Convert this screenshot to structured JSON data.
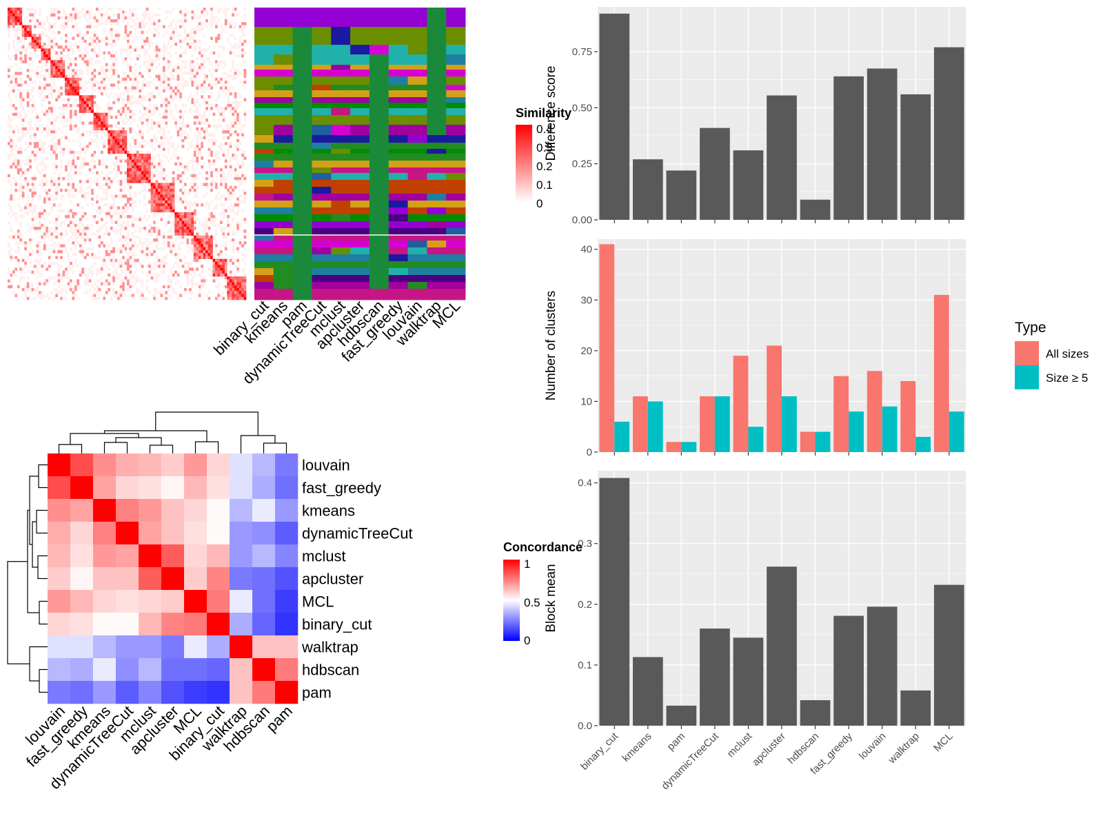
{
  "colors": {
    "panel_bg": "#ebebeb",
    "grid": "#ffffff",
    "bar_dark": "#595959",
    "all_sizes": "#f8766d",
    "size5": "#00bfc4",
    "heat_high": "#ff0000",
    "heat_low_blue": "#0000ff"
  },
  "methods": [
    "binary_cut",
    "kmeans",
    "pam",
    "dynamicTreeCut",
    "mclust",
    "apcluster",
    "hdbscan",
    "fast_greedy",
    "louvain",
    "walktrap",
    "MCL"
  ],
  "similarity_legend": {
    "title": "Similarity",
    "ticks": [
      "0.4",
      "0.3",
      "0.2",
      "0.1",
      "0"
    ]
  },
  "concordance_legend": {
    "title": "Concordance",
    "ticks": [
      "1",
      "0.5",
      "0"
    ]
  },
  "concordance_order": [
    "louvain",
    "fast_greedy",
    "kmeans",
    "dynamicTreeCut",
    "mclust",
    "apcluster",
    "MCL",
    "binary_cut",
    "walktrap",
    "hdbscan",
    "pam"
  ],
  "type_legend": {
    "title": "Type",
    "items": [
      "All sizes",
      "Size ≥ 5"
    ]
  },
  "chart_data": [
    {
      "type": "bar",
      "ylabel": "Difference score",
      "categories": [
        "binary_cut",
        "kmeans",
        "pam",
        "dynamicTreeCut",
        "mclust",
        "apcluster",
        "hdbscan",
        "fast_greedy",
        "louvain",
        "walktrap",
        "MCL"
      ],
      "values": [
        0.92,
        0.27,
        0.22,
        0.41,
        0.31,
        0.555,
        0.09,
        0.64,
        0.675,
        0.56,
        0.77
      ],
      "ylim": [
        0,
        0.95
      ],
      "yticks": [
        "0.00",
        "0.25",
        "0.50",
        "0.75"
      ],
      "grid": true
    },
    {
      "type": "bar",
      "ylabel": "Number of clusters",
      "categories": [
        "binary_cut",
        "kmeans",
        "pam",
        "dynamicTreeCut",
        "mclust",
        "apcluster",
        "hdbscan",
        "fast_greedy",
        "louvain",
        "walktrap",
        "MCL"
      ],
      "series": [
        {
          "name": "All sizes",
          "values": [
            41,
            11,
            2,
            11,
            19,
            21,
            4,
            15,
            16,
            14,
            31
          ]
        },
        {
          "name": "Size ≥ 5",
          "values": [
            6,
            10,
            2,
            11,
            5,
            11,
            4,
            8,
            9,
            3,
            8
          ]
        }
      ],
      "ylim": [
        0,
        42
      ],
      "yticks": [
        "0",
        "10",
        "20",
        "30",
        "40"
      ],
      "legend": "right",
      "grid": true
    },
    {
      "type": "bar",
      "ylabel": "Block mean",
      "categories": [
        "binary_cut",
        "kmeans",
        "pam",
        "dynamicTreeCut",
        "mclust",
        "apcluster",
        "hdbscan",
        "fast_greedy",
        "louvain",
        "walktrap",
        "MCL"
      ],
      "values": [
        0.408,
        0.113,
        0.033,
        0.16,
        0.145,
        0.262,
        0.042,
        0.181,
        0.196,
        0.058,
        0.232
      ],
      "ylim": [
        0,
        0.42
      ],
      "yticks": [
        "0.0",
        "0.1",
        "0.2",
        "0.3",
        "0.4"
      ],
      "grid": true
    },
    {
      "type": "heatmap",
      "title": "Concordance",
      "rows": [
        "louvain",
        "fast_greedy",
        "kmeans",
        "dynamicTreeCut",
        "mclust",
        "apcluster",
        "MCL",
        "binary_cut",
        "walktrap",
        "hdbscan",
        "pam"
      ],
      "cols": [
        "louvain",
        "fast_greedy",
        "kmeans",
        "dynamicTreeCut",
        "mclust",
        "apcluster",
        "MCL",
        "binary_cut",
        "walktrap",
        "hdbscan",
        "pam"
      ],
      "values": [
        [
          1.0,
          0.85,
          0.72,
          0.66,
          0.64,
          0.6,
          0.7,
          0.58,
          0.44,
          0.36,
          0.24
        ],
        [
          0.85,
          1.0,
          0.68,
          0.58,
          0.56,
          0.52,
          0.64,
          0.56,
          0.44,
          0.34,
          0.22
        ],
        [
          0.72,
          0.68,
          1.0,
          0.75,
          0.7,
          0.62,
          0.58,
          0.51,
          0.36,
          0.46,
          0.3
        ],
        [
          0.66,
          0.58,
          0.75,
          1.0,
          0.68,
          0.62,
          0.56,
          0.51,
          0.3,
          0.28,
          0.18
        ],
        [
          0.64,
          0.56,
          0.7,
          0.68,
          1.0,
          0.82,
          0.58,
          0.64,
          0.3,
          0.36,
          0.26
        ],
        [
          0.6,
          0.52,
          0.62,
          0.62,
          0.82,
          1.0,
          0.6,
          0.74,
          0.24,
          0.22,
          0.16
        ],
        [
          0.7,
          0.64,
          0.58,
          0.56,
          0.58,
          0.6,
          1.0,
          0.76,
          0.46,
          0.22,
          0.12
        ],
        [
          0.58,
          0.56,
          0.51,
          0.51,
          0.64,
          0.74,
          0.76,
          1.0,
          0.34,
          0.2,
          0.1
        ],
        [
          0.44,
          0.44,
          0.36,
          0.3,
          0.3,
          0.24,
          0.46,
          0.34,
          1.0,
          0.62,
          0.62
        ],
        [
          0.36,
          0.34,
          0.46,
          0.28,
          0.36,
          0.22,
          0.22,
          0.2,
          0.62,
          1.0,
          0.76
        ],
        [
          0.24,
          0.22,
          0.3,
          0.18,
          0.26,
          0.16,
          0.12,
          0.1,
          0.62,
          0.76,
          1.0
        ]
      ],
      "range": [
        0,
        1
      ]
    }
  ]
}
